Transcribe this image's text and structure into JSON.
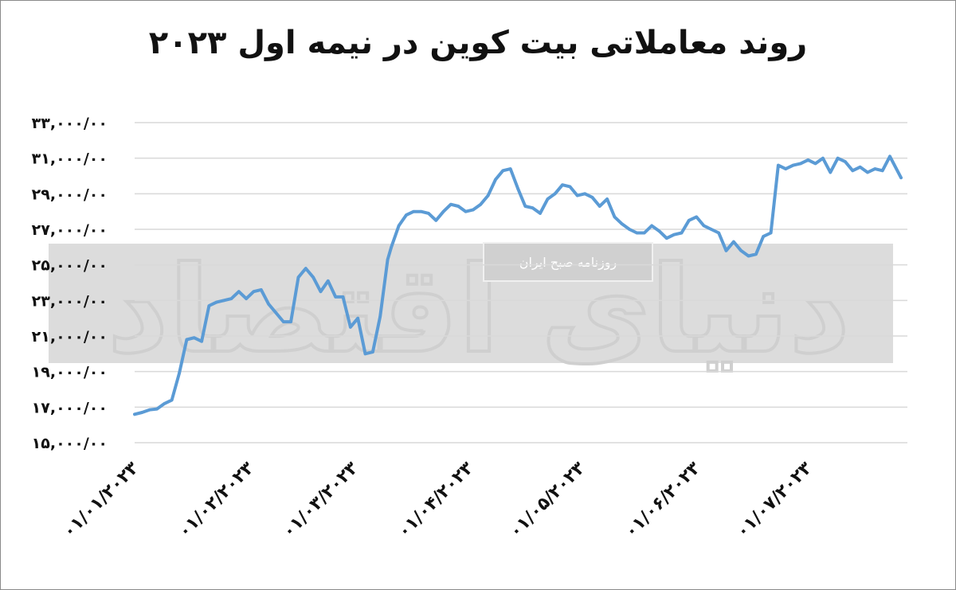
{
  "title": "روند معاملاتی بیت کوین در نیمه اول ۲۰۲۳",
  "watermark": {
    "logo_text": "دنیای اقتصاد",
    "label": "روزنامه صبح ایران"
  },
  "colors": {
    "line": "#5b9bd5",
    "grid": "#d9d9d9",
    "watermark_band": "#dcdcdc",
    "text": "#111111"
  },
  "chart_data": {
    "type": "line",
    "title": "روند معاملاتی بیت کوین در نیمه اول ۲۰۲۳",
    "xlabel": "",
    "ylabel": "",
    "ylim": [
      15000,
      33000
    ],
    "y_ticks": [
      15000,
      17000,
      19000,
      21000,
      23000,
      25000,
      27000,
      29000,
      31000,
      33000
    ],
    "y_tick_labels": [
      "۱۵,۰۰۰/۰۰",
      "۱۷,۰۰۰/۰۰",
      "۱۹,۰۰۰/۰۰",
      "۲۱,۰۰۰/۰۰",
      "۲۳,۰۰۰/۰۰",
      "۲۵,۰۰۰/۰۰",
      "۲۷,۰۰۰/۰۰",
      "۲۹,۰۰۰/۰۰",
      "۳۱,۰۰۰/۰۰",
      "۳۳,۰۰۰/۰۰"
    ],
    "x_range": [
      "2023-01-01",
      "2023-07-26"
    ],
    "x_ticks": [
      "2023-01-01",
      "2023-02-01",
      "2023-03-01",
      "2023-04-01",
      "2023-05-01",
      "2023-06-01",
      "2023-07-01"
    ],
    "x_tick_labels": [
      "۰۱/۰۱/۲۰۲۳",
      "۰۱/۰۲/۲۰۲۳",
      "۰۱/۰۳/۲۰۲۳",
      "۰۱/۰۴/۲۰۲۳",
      "۰۱/۰۵/۲۰۲۳",
      "۰۱/۰۶/۲۰۲۳",
      "۰۱/۰۷/۲۰۲۳"
    ],
    "grid": true,
    "legend": "none",
    "series": [
      {
        "x": [
          "2023-01-01",
          "2023-01-03",
          "2023-01-05",
          "2023-01-07",
          "2023-01-09",
          "2023-01-11",
          "2023-01-13",
          "2023-01-15",
          "2023-01-17",
          "2023-01-19",
          "2023-01-21",
          "2023-01-23",
          "2023-01-25",
          "2023-01-27",
          "2023-01-29",
          "2023-01-31",
          "2023-02-02",
          "2023-02-04",
          "2023-02-06",
          "2023-02-08",
          "2023-02-10",
          "2023-02-12",
          "2023-02-14",
          "2023-02-16",
          "2023-02-18",
          "2023-02-20",
          "2023-02-22",
          "2023-02-24",
          "2023-02-26",
          "2023-02-28",
          "2023-03-02",
          "2023-03-04",
          "2023-03-06",
          "2023-03-08",
          "2023-03-10",
          "2023-03-11",
          "2023-03-13",
          "2023-03-15",
          "2023-03-17",
          "2023-03-19",
          "2023-03-21",
          "2023-03-23",
          "2023-03-25",
          "2023-03-27",
          "2023-03-29",
          "2023-03-31",
          "2023-04-02",
          "2023-04-04",
          "2023-04-06",
          "2023-04-08",
          "2023-04-10",
          "2023-04-12",
          "2023-04-14",
          "2023-04-16",
          "2023-04-18",
          "2023-04-20",
          "2023-04-22",
          "2023-04-24",
          "2023-04-26",
          "2023-04-28",
          "2023-04-30",
          "2023-05-02",
          "2023-05-04",
          "2023-05-06",
          "2023-05-08",
          "2023-05-10",
          "2023-05-12",
          "2023-05-14",
          "2023-05-16",
          "2023-05-18",
          "2023-05-20",
          "2023-05-22",
          "2023-05-24",
          "2023-05-26",
          "2023-05-28",
          "2023-05-30",
          "2023-06-01",
          "2023-06-03",
          "2023-06-05",
          "2023-06-07",
          "2023-06-09",
          "2023-06-11",
          "2023-06-13",
          "2023-06-15",
          "2023-06-17",
          "2023-06-19",
          "2023-06-21",
          "2023-06-23",
          "2023-06-25",
          "2023-06-27",
          "2023-06-29",
          "2023-07-01",
          "2023-07-03",
          "2023-07-05",
          "2023-07-07",
          "2023-07-09",
          "2023-07-11",
          "2023-07-13",
          "2023-07-15",
          "2023-07-17",
          "2023-07-19",
          "2023-07-21",
          "2023-07-23",
          "2023-07-26"
        ],
        "values": [
          16600,
          16700,
          16850,
          16900,
          17200,
          17400,
          18900,
          20800,
          20900,
          20700,
          22700,
          22900,
          23000,
          23100,
          23500,
          23100,
          23500,
          23600,
          22800,
          22300,
          21800,
          21800,
          24300,
          24800,
          24300,
          23500,
          24100,
          23200,
          23200,
          21500,
          22000,
          20000,
          20100,
          22100,
          25300,
          26000,
          27200,
          27800,
          28000,
          28000,
          27900,
          27500,
          28000,
          28400,
          28300,
          28000,
          28100,
          28400,
          28900,
          29800,
          30300,
          30400,
          29300,
          28300,
          28200,
          27900,
          28700,
          29000,
          29500,
          29400,
          28900,
          29000,
          28800,
          28300,
          28700,
          27700,
          27300,
          27000,
          26800,
          26800,
          27200,
          26900,
          26500,
          26700,
          26800,
          27500,
          27700,
          27200,
          27000,
          26800,
          25800,
          26300,
          25800,
          25500,
          25600,
          26600,
          26800,
          30600,
          30400,
          30600,
          30700,
          30900,
          30700,
          31000,
          30200,
          31000,
          30800,
          30300,
          30500,
          30200,
          30400,
          30300,
          31100,
          29900
        ]
      }
    ]
  }
}
